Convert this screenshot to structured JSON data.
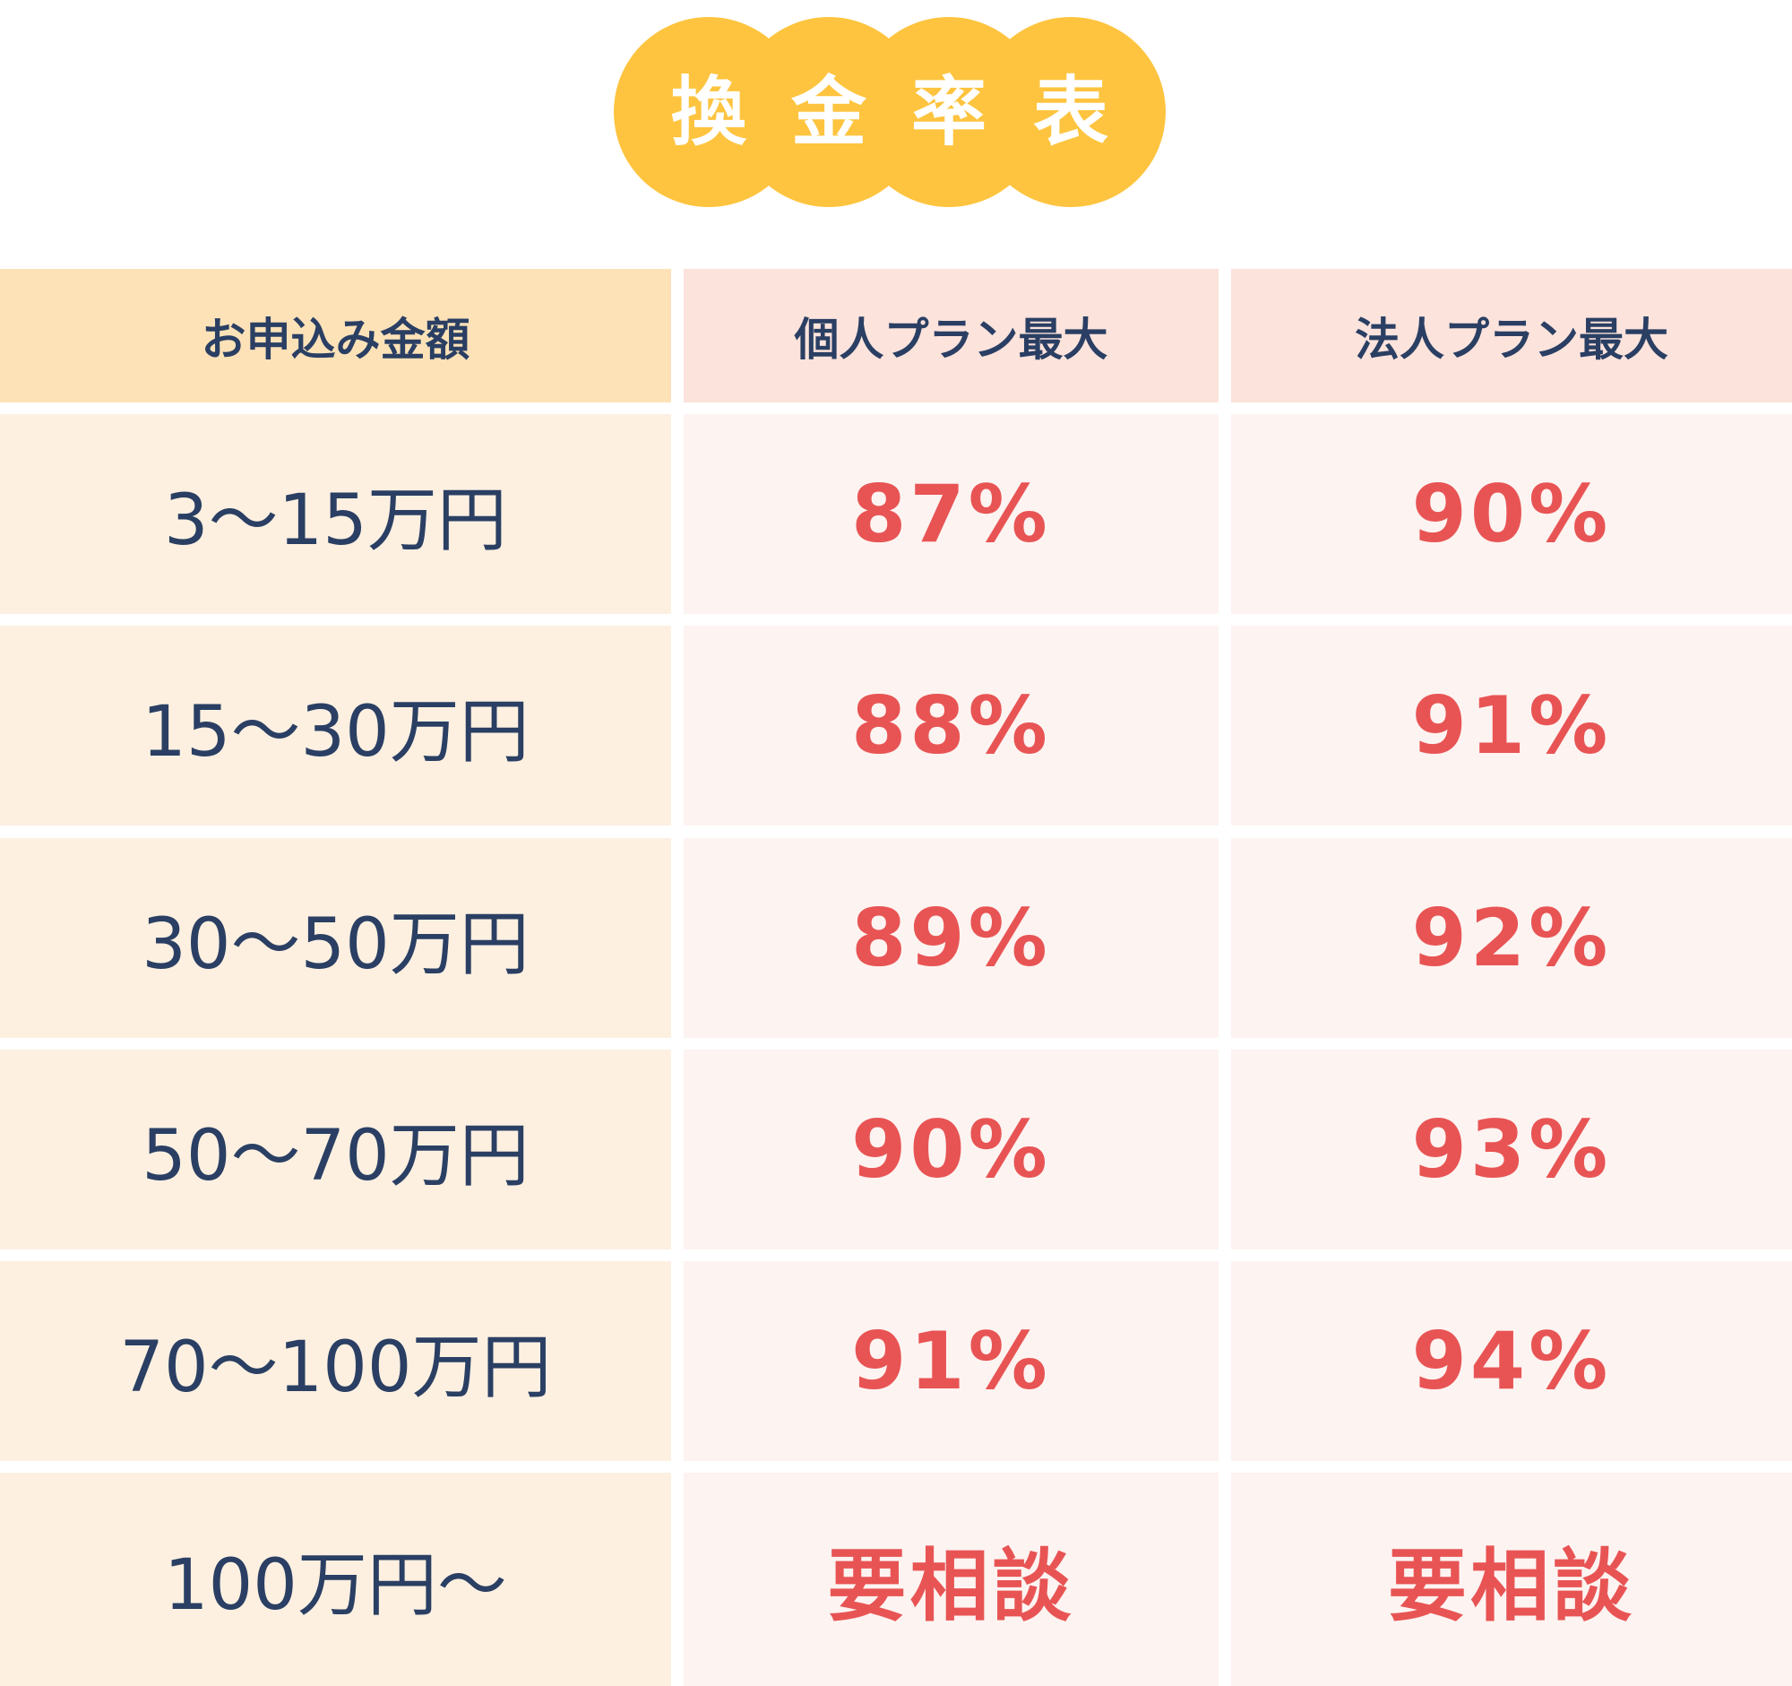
{
  "title": [
    "換",
    "金",
    "率",
    "表"
  ],
  "table": {
    "header": [
      "お申込み金額",
      "個人プラン最大",
      "法人プラン最大"
    ],
    "rows": [
      [
        "3〜15万円",
        "87%",
        "90%"
      ],
      [
        "15〜30万円",
        "88%",
        "91%"
      ],
      [
        "30〜50万円",
        "89%",
        "92%"
      ],
      [
        "50〜70万円",
        "90%",
        "93%"
      ],
      [
        "70〜100万円",
        "91%",
        "94%"
      ],
      [
        "100万円〜",
        "要相談",
        "要相談"
      ]
    ]
  }
}
